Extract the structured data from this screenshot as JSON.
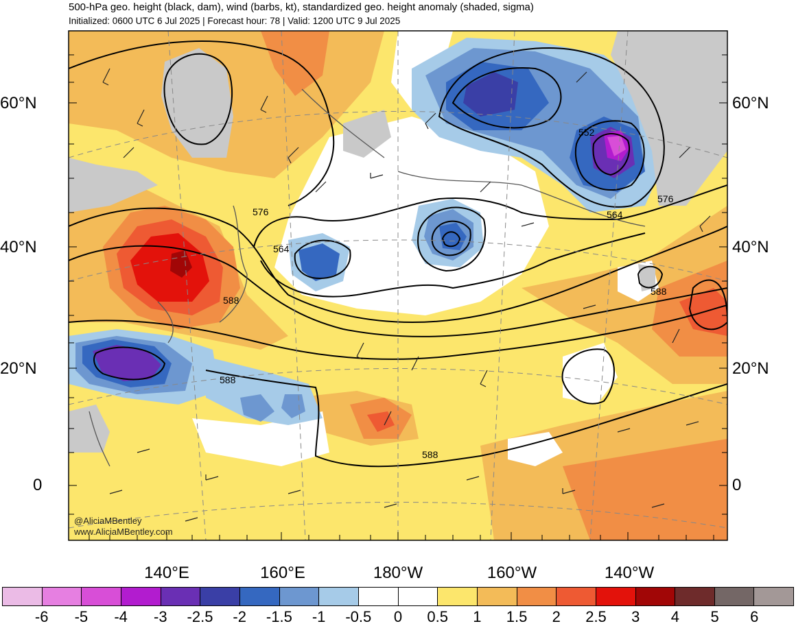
{
  "title": "500-hPa geo. height (black, dam), wind (barbs, kt), standardized geo. height anomaly (shaded, sigma)",
  "subtitle": "Initialized: 0600 UTC 6 Jul 2025 | Forecast hour: 78 | Valid: 1200 UTC 9 Jul 2025",
  "lat_labels": [
    "60°N",
    "40°N",
    "20°N",
    "0"
  ],
  "lon_labels": [
    "140°E",
    "160°E",
    "180°W",
    "160°W",
    "140°W"
  ],
  "contour_labels": [
    "576",
    "564",
    "588",
    "588",
    "552",
    "564",
    "576",
    "588",
    "588"
  ],
  "watermark": {
    "handle": "@AliciaMBentley",
    "site": "www.AliciaMBentley.com"
  },
  "colorbar": {
    "labels": [
      "-6",
      "-5",
      "-4",
      "-3",
      "-2.5",
      "-2",
      "-1.5",
      "-1",
      "-0.5",
      "0",
      "0.5",
      "1",
      "1.5",
      "2",
      "2.5",
      "3",
      "4",
      "5",
      "6"
    ],
    "colors": [
      "#ebbbe6",
      "#e67fe1",
      "#d84ed7",
      "#b21ccf",
      "#6a2fb4",
      "#3a3fa6",
      "#3568c0",
      "#6d97d0",
      "#a6cbe8",
      "#ffffff",
      "#ffffff",
      "#fce66c",
      "#f3bb58",
      "#f18e45",
      "#ee5a33",
      "#e3120b",
      "#a10606",
      "#6e2b2b",
      "#746766",
      "#a39897"
    ]
  },
  "colors": {
    "land": "#c9c9c9",
    "coast": "#555555",
    "contour": "#000000"
  }
}
